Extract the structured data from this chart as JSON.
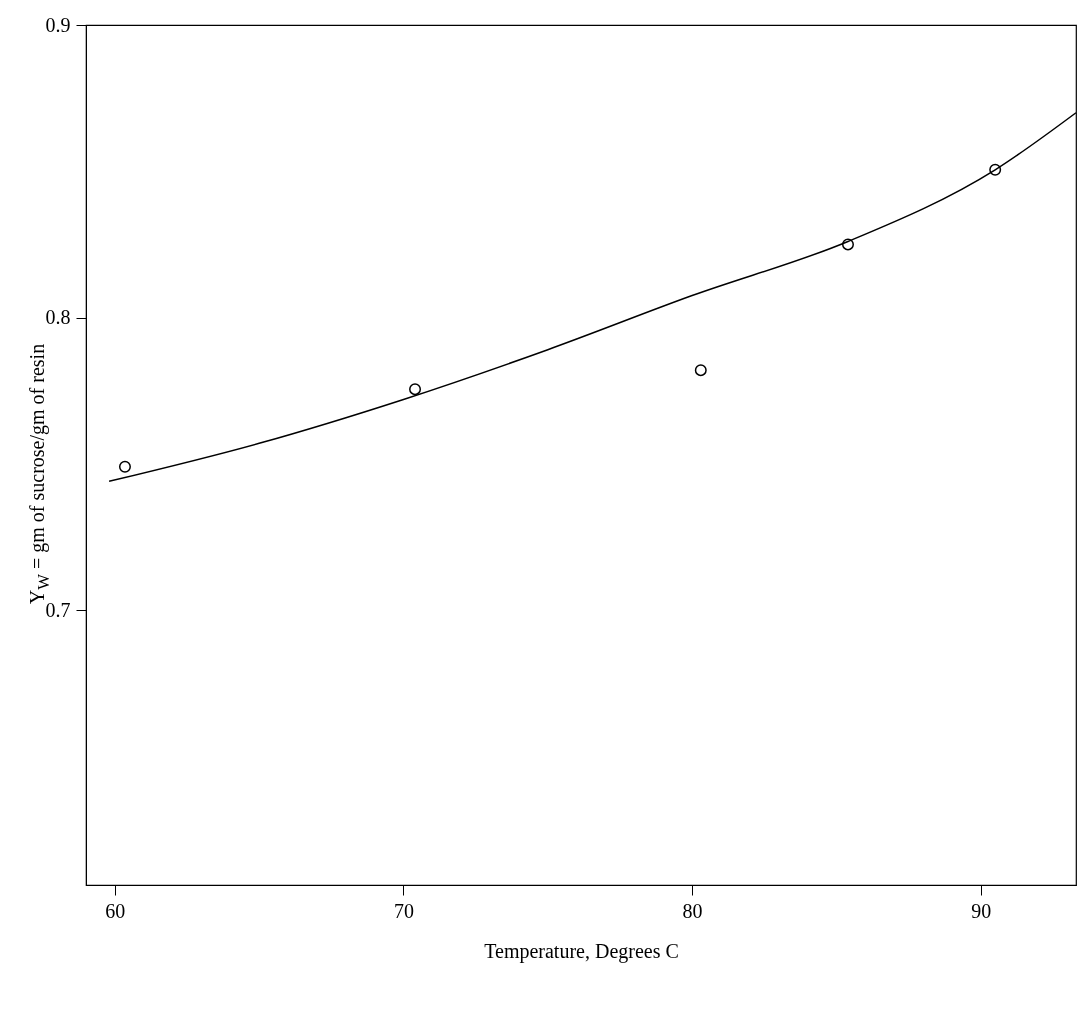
{
  "chart_data": {
    "type": "scatter",
    "xlabel": "Temperature, Degrees C",
    "ylabel": "Y$_{W}$ = gm of sucrose/gm of resin",
    "xlim": [
      59,
      93.3
    ],
    "ylim": [
      0.606,
      0.9
    ],
    "xticks": [
      60,
      70,
      80,
      90
    ],
    "yticks": [
      0.7,
      0.8,
      0.9
    ],
    "grid": false,
    "marker": "circle",
    "series": [
      {
        "color": "#000000",
        "x": [
          60.35,
          70.4,
          80.3,
          85.4,
          90.5
        ],
        "values": [
          0.749,
          0.7755,
          0.782,
          0.825,
          0.8505
        ]
      },
      {
        "type": "line",
        "color": "#000000",
        "line_style": "solid",
        "marker": "none",
        "x": [
          59.8,
          65,
          70,
          75,
          80,
          85.4,
          90.5,
          93.3
        ],
        "values": [
          0.744,
          0.757,
          0.772,
          0.789,
          0.8075,
          0.826,
          0.8505,
          0.87
        ]
      }
    ]
  }
}
